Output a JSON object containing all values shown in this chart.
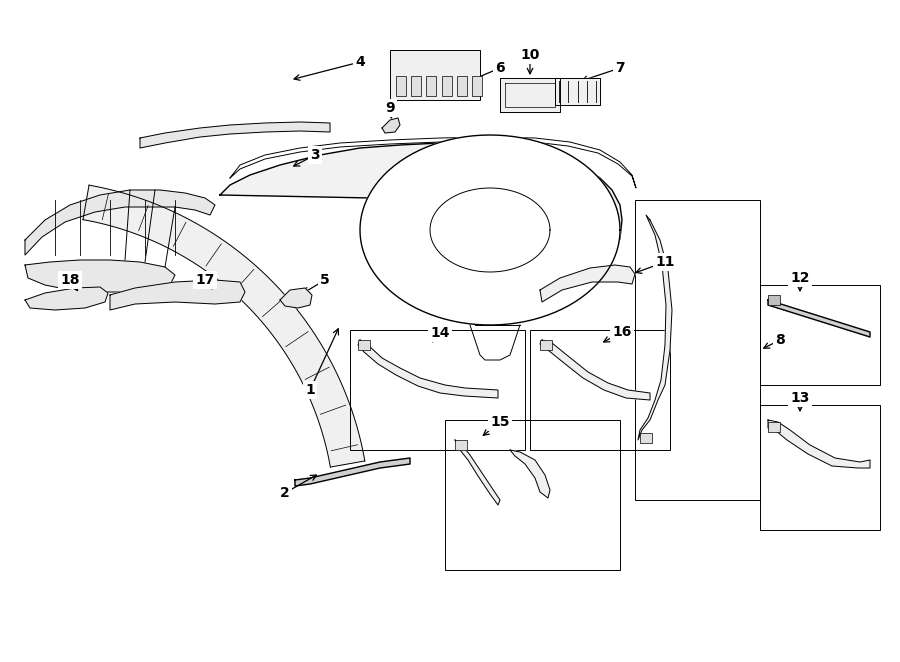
{
  "bg_color": "#ffffff",
  "fig_width": 9.0,
  "fig_height": 6.62,
  "dpi": 100
}
